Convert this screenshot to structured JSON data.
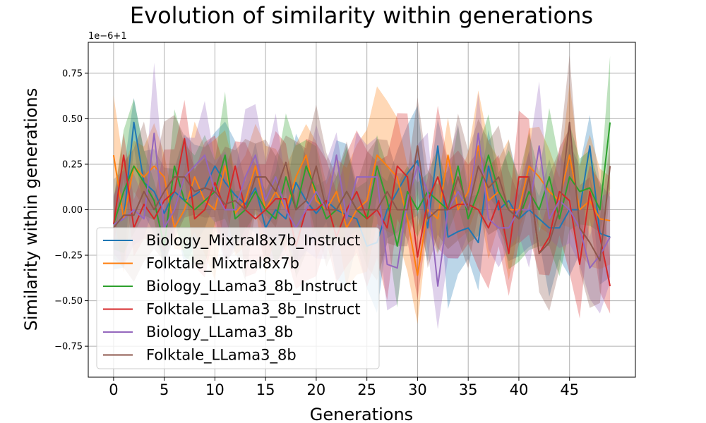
{
  "chart_data": {
    "type": "line",
    "title": "Evolution of similarity within generations",
    "xlabel": "Generations",
    "ylabel": "Similarity within generations",
    "offset_label": "1e−6+1",
    "xlim": [
      -2.5,
      51.5
    ],
    "ylim": [
      -0.92,
      0.92
    ],
    "xticks": [
      0,
      5,
      10,
      15,
      20,
      25,
      30,
      35,
      40,
      45
    ],
    "yticks": [
      -0.75,
      -0.5,
      -0.25,
      0.0,
      0.25,
      0.5,
      0.75
    ],
    "ytick_labels": [
      "−0.75",
      "−0.50",
      "−0.25",
      "0.00",
      "0.25",
      "0.50",
      "0.75"
    ],
    "grid": true,
    "legend_position": "lower-left",
    "x": [
      0,
      1,
      2,
      3,
      4,
      5,
      6,
      7,
      8,
      9,
      10,
      11,
      12,
      13,
      14,
      15,
      16,
      17,
      18,
      19,
      20,
      21,
      22,
      23,
      24,
      25,
      26,
      27,
      28,
      29,
      30,
      31,
      32,
      33,
      34,
      35,
      36,
      37,
      38,
      39,
      40,
      41,
      42,
      43,
      44,
      45,
      46,
      47,
      48,
      49
    ],
    "series": [
      {
        "name": "Biology_Mixtral8x7b_Instruct",
        "color": "#1f77b4",
        "values": [
          -0.08,
          -0.05,
          0.48,
          0.15,
          0.1,
          -0.02,
          0.1,
          0.05,
          0.08,
          0.12,
          0.24,
          0.15,
          0.08,
          0.03,
          0.12,
          -0.1,
          0.0,
          -0.05,
          0.15,
          0.05,
          -0.02,
          0.05,
          0.0,
          -0.03,
          -0.05,
          -0.2,
          -0.18,
          0.0,
          0.1,
          0.2,
          0.27,
          -0.1,
          0.35,
          -0.15,
          -0.12,
          -0.1,
          -0.18,
          0.24,
          0.0,
          0.05,
          -0.05,
          0.0,
          -0.05,
          -0.1,
          -0.1,
          0.0,
          0.0,
          0.35,
          -0.13,
          -0.15
        ]
      },
      {
        "name": "Folktale_Mixtral8x7b",
        "color": "#ff7f0e",
        "values": [
          0.3,
          -0.05,
          0.24,
          0.18,
          0.24,
          0.18,
          -0.1,
          0.0,
          0.18,
          0.05,
          0.0,
          0.24,
          -0.02,
          0.05,
          0.24,
          0.0,
          0.1,
          0.0,
          0.18,
          0.3,
          0.05,
          0.0,
          0.1,
          -0.1,
          0.0,
          0.05,
          0.3,
          0.24,
          0.18,
          -0.05,
          -0.36,
          0.0,
          -0.05,
          0.3,
          0.0,
          0.1,
          0.35,
          0.05,
          0.1,
          0.0,
          0.0,
          0.24,
          0.18,
          0.1,
          0.05,
          0.3,
          0.0,
          0.05,
          -0.05,
          -0.06
        ]
      },
      {
        "name": "Biology_LLama3_8b_Instruct",
        "color": "#2ca02c",
        "values": [
          -0.08,
          0.1,
          0.24,
          0.15,
          0.05,
          -0.2,
          0.24,
          0.05,
          0.0,
          0.05,
          0.1,
          0.3,
          -0.05,
          0.0,
          0.1,
          0.0,
          -0.05,
          0.18,
          0.0,
          0.24,
          0.1,
          -0.05,
          0.0,
          0.1,
          0.0,
          -0.05,
          0.24,
          0.05,
          -0.2,
          0.1,
          0.0,
          0.1,
          0.05,
          0.0,
          0.24,
          -0.05,
          0.1,
          0.3,
          0.1,
          0.0,
          -0.05,
          0.1,
          0.0,
          0.18,
          -0.05,
          0.18,
          0.1,
          0.12,
          0.0,
          0.48
        ]
      },
      {
        "name": "Folktale_LLama3_8b_Instruct",
        "color": "#d62728",
        "values": [
          -0.08,
          0.3,
          -0.1,
          0.03,
          -0.05,
          0.05,
          0.1,
          0.39,
          -0.05,
          0.0,
          0.15,
          0.0,
          0.24,
          0.0,
          -0.05,
          0.0,
          0.06,
          0.06,
          -0.2,
          0.0,
          0.0,
          0.05,
          -0.15,
          0.0,
          0.1,
          -0.05,
          0.0,
          -0.1,
          0.24,
          0.18,
          -0.26,
          0.05,
          0.18,
          0.0,
          0.03,
          0.03,
          0.0,
          -0.1,
          0.05,
          -0.24,
          0.18,
          0.18,
          -0.24,
          -0.15,
          0.1,
          0.05,
          -0.3,
          0.1,
          -0.15,
          -0.42
        ]
      },
      {
        "name": "Biology_LLama3_8b",
        "color": "#9467bd",
        "values": [
          -0.08,
          -0.05,
          0.0,
          -0.05,
          0.42,
          -0.1,
          0.0,
          0.18,
          0.24,
          0.3,
          0.1,
          0.0,
          0.0,
          0.18,
          0.3,
          0.05,
          0.18,
          0.0,
          -0.1,
          0.0,
          0.1,
          0.0,
          0.3,
          -0.05,
          0.18,
          0.18,
          0.18,
          -0.3,
          -0.32,
          0.05,
          0.24,
          0.1,
          -0.42,
          0.0,
          0.1,
          0.0,
          0.42,
          -0.05,
          -0.1,
          -0.1,
          0.0,
          0.0,
          0.35,
          -0.05,
          0.05,
          0.0,
          -0.1,
          -0.32,
          -0.25,
          -0.15
        ]
      },
      {
        "name": "Folktale_LLama3_8b",
        "color": "#8c564b",
        "values": [
          -0.1,
          -0.03,
          -0.03,
          0.1,
          0.0,
          0.1,
          0.18,
          0.18,
          0.1,
          0.12,
          0.1,
          0.03,
          0.05,
          0.0,
          0.18,
          0.18,
          0.1,
          0.26,
          0.0,
          0.05,
          0.24,
          0.0,
          0.0,
          0.1,
          0.0,
          0.0,
          0.0,
          0.1,
          0.0,
          0.0,
          0.35,
          -0.05,
          0.0,
          0.0,
          0.18,
          0.0,
          0.24,
          0.12,
          0.18,
          0.0,
          -0.05,
          0.18,
          -0.24,
          -0.18,
          0.0,
          0.48,
          -0.1,
          -0.18,
          -0.28,
          0.24
        ]
      }
    ]
  }
}
